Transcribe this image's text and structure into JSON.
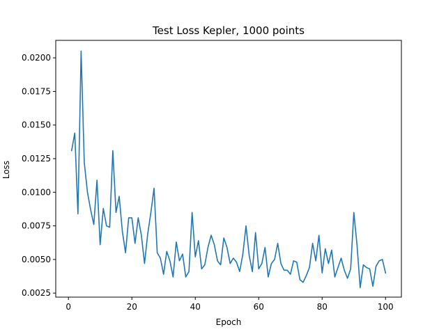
{
  "chart_data": {
    "type": "line",
    "title": "Test Loss Kepler, 1000 points",
    "xlabel": "Epoch",
    "ylabel": "Loss",
    "xlim": [
      -4,
      105
    ],
    "ylim": [
      0.0022,
      0.0213
    ],
    "xticks": [
      0,
      20,
      40,
      60,
      80,
      100
    ],
    "xtick_labels": [
      "0",
      "20",
      "40",
      "60",
      "80",
      "100"
    ],
    "yticks": [
      0.0025,
      0.005,
      0.0075,
      0.01,
      0.0125,
      0.015,
      0.0175,
      0.02
    ],
    "ytick_labels": [
      "0.0025",
      "0.0050",
      "0.0075",
      "0.0100",
      "0.0125",
      "0.0150",
      "0.0175",
      "0.0200"
    ],
    "grid": false,
    "series": [
      {
        "color": "#1f77b4",
        "x": [
          1,
          2,
          3,
          4,
          5,
          6,
          7,
          8,
          9,
          10,
          11,
          12,
          13,
          14,
          15,
          16,
          17,
          18,
          19,
          20,
          21,
          22,
          23,
          24,
          25,
          26,
          27,
          28,
          29,
          30,
          31,
          32,
          33,
          34,
          35,
          36,
          37,
          38,
          39,
          40,
          41,
          42,
          43,
          44,
          45,
          46,
          47,
          48,
          49,
          50,
          51,
          52,
          53,
          54,
          55,
          56,
          57,
          58,
          59,
          60,
          61,
          62,
          63,
          64,
          65,
          66,
          67,
          68,
          69,
          70,
          71,
          72,
          73,
          74,
          75,
          76,
          77,
          78,
          79,
          80,
          81,
          82,
          83,
          84,
          85,
          86,
          87,
          88,
          89,
          90,
          91,
          92,
          93,
          94,
          95,
          96,
          97,
          98,
          99,
          100
        ],
        "y": [
          0.0131,
          0.0144,
          0.0084,
          0.0205,
          0.0122,
          0.01,
          0.0087,
          0.0076,
          0.0109,
          0.0061,
          0.0088,
          0.0075,
          0.0074,
          0.0131,
          0.0085,
          0.0097,
          0.0071,
          0.0055,
          0.0081,
          0.0081,
          0.0062,
          0.0081,
          0.0068,
          0.0047,
          0.0069,
          0.0085,
          0.0103,
          0.0055,
          0.0051,
          0.0039,
          0.0056,
          0.0049,
          0.0037,
          0.0063,
          0.0049,
          0.0054,
          0.0037,
          0.0041,
          0.0085,
          0.0052,
          0.0064,
          0.0043,
          0.0046,
          0.0059,
          0.0068,
          0.0061,
          0.0049,
          0.0046,
          0.0066,
          0.0059,
          0.0047,
          0.0051,
          0.0048,
          0.0041,
          0.0054,
          0.0075,
          0.0053,
          0.0041,
          0.007,
          0.0043,
          0.0047,
          0.0059,
          0.0037,
          0.0047,
          0.005,
          0.0062,
          0.0047,
          0.0042,
          0.0042,
          0.0039,
          0.0049,
          0.0048,
          0.0035,
          0.0033,
          0.0038,
          0.0044,
          0.0062,
          0.0049,
          0.0068,
          0.004,
          0.0058,
          0.0047,
          0.0057,
          0.0037,
          0.0044,
          0.0051,
          0.0042,
          0.0036,
          0.0043,
          0.0085,
          0.0061,
          0.0029,
          0.0046,
          0.0044,
          0.0043,
          0.003,
          0.0045,
          0.0049,
          0.005,
          0.004
        ]
      }
    ]
  }
}
